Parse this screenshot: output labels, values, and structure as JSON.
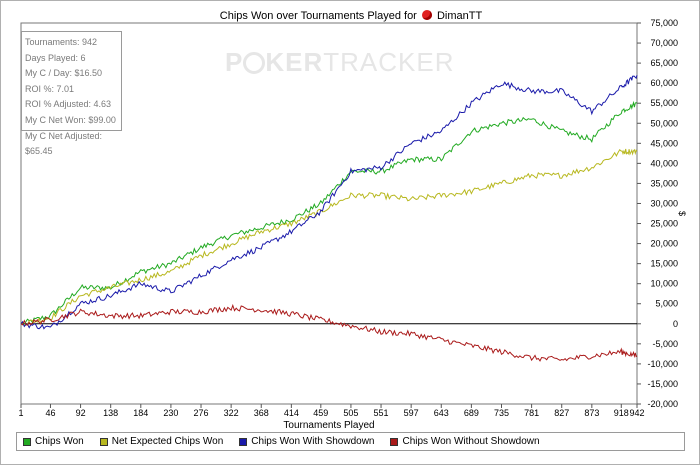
{
  "chart_data": {
    "type": "line",
    "title": "Chips Won over Tournaments Played for",
    "title_user": "DimanTT",
    "xlabel": "Tournaments Played",
    "ylabel": "$",
    "xlim": [
      1,
      942
    ],
    "ylim": [
      -20000,
      75000
    ],
    "x_ticks": [
      "1",
      "46",
      "92",
      "138",
      "184",
      "230",
      "276",
      "322",
      "368",
      "414",
      "459",
      "505",
      "551",
      "597",
      "643",
      "689",
      "735",
      "781",
      "827",
      "873",
      "918",
      "942"
    ],
    "y_ticks": [
      "-20,000",
      "-15,000",
      "-10,000",
      "-5,000",
      "0",
      "5,000",
      "10,000",
      "15,000",
      "20,000",
      "25,000",
      "30,000",
      "35,000",
      "40,000",
      "45,000",
      "50,000",
      "55,000",
      "60,000",
      "65,000",
      "70,000",
      "75,000"
    ],
    "y_tick_values": [
      -20000,
      -15000,
      -10000,
      -5000,
      0,
      5000,
      10000,
      15000,
      20000,
      25000,
      30000,
      35000,
      40000,
      45000,
      50000,
      55000,
      60000,
      65000,
      70000,
      75000
    ],
    "grid": false,
    "legend_position": "bottom",
    "series": [
      {
        "name": "Chips Won",
        "color": "#22aa22",
        "x": [
          1,
          46,
          92,
          138,
          184,
          230,
          276,
          322,
          368,
          414,
          459,
          505,
          551,
          597,
          643,
          689,
          735,
          781,
          827,
          873,
          918,
          942
        ],
        "values": [
          0,
          2000,
          9000,
          9000,
          13000,
          15000,
          19000,
          22000,
          24000,
          26000,
          30000,
          38000,
          38000,
          41000,
          41000,
          48000,
          50000,
          51000,
          48000,
          46000,
          53000,
          55000
        ]
      },
      {
        "name": "Net Expected Chips Won",
        "color": "#b8b820",
        "x": [
          1,
          46,
          92,
          138,
          184,
          230,
          276,
          322,
          368,
          414,
          459,
          505,
          551,
          597,
          643,
          689,
          735,
          781,
          827,
          873,
          918,
          942
        ],
        "values": [
          0,
          1500,
          7000,
          9000,
          11000,
          13000,
          17000,
          20000,
          23000,
          25000,
          28000,
          32000,
          32000,
          31000,
          32000,
          33000,
          35000,
          37000,
          37000,
          39000,
          43000,
          43000
        ]
      },
      {
        "name": "Chips Won With Showdown",
        "color": "#1a1aaa",
        "x": [
          1,
          46,
          92,
          138,
          184,
          230,
          276,
          322,
          368,
          414,
          459,
          505,
          551,
          597,
          643,
          689,
          735,
          781,
          827,
          873,
          918,
          942
        ],
        "values": [
          0,
          -1000,
          5000,
          7000,
          10000,
          8000,
          12000,
          16000,
          19000,
          23000,
          28000,
          38000,
          39000,
          45000,
          48000,
          55000,
          60000,
          58000,
          58000,
          53000,
          59000,
          62000
        ]
      },
      {
        "name": "Chips Won Without Showdown",
        "color": "#aa1a1a",
        "x": [
          1,
          46,
          92,
          138,
          184,
          230,
          276,
          322,
          368,
          414,
          459,
          505,
          551,
          597,
          643,
          689,
          735,
          781,
          827,
          873,
          918,
          942
        ],
        "values": [
          0,
          1000,
          3000,
          2000,
          2000,
          3000,
          3000,
          4000,
          3500,
          2500,
          1000,
          -500,
          -2000,
          -2500,
          -4000,
          -5500,
          -7000,
          -8500,
          -9000,
          -8000,
          -7000,
          -8000
        ]
      }
    ]
  },
  "stats": {
    "tournaments": "Tournaments: 942",
    "days_played": "Days Played: 6",
    "my_c_day": "My C / Day: $16.50",
    "roi": "ROI %: 7.01",
    "roi_adjusted": "ROI % Adjusted: 4.63",
    "my_c_net_won": "My C Net Won: $99.00",
    "my_c_net_adjusted": "My C Net Adjusted: $65.45"
  },
  "watermark": {
    "part1": "P",
    "part2": "KER",
    "part3": "TRACKER"
  }
}
